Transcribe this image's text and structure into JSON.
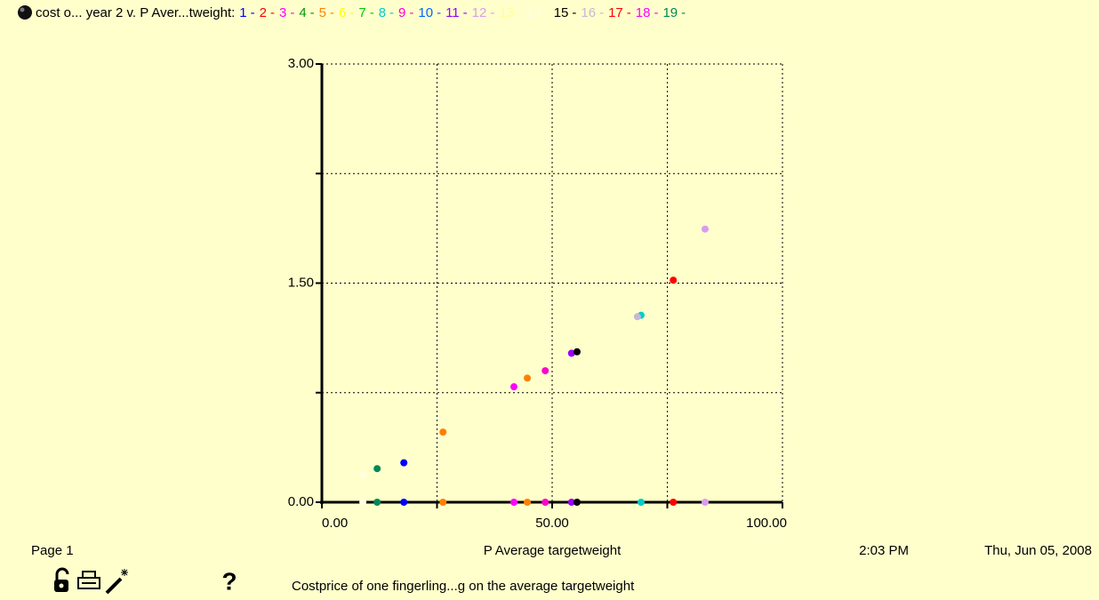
{
  "chart_data": {
    "type": "scatter",
    "title": "cost o... year 2 v. P Aver...tweight:",
    "legend_separator": "-",
    "xlabel": "P Average targetweight",
    "xlim": [
      0,
      100
    ],
    "ylim": [
      0,
      3
    ],
    "xticks": [
      {
        "value": 0,
        "label": "0.00"
      },
      {
        "value": 50,
        "label": "50.00"
      },
      {
        "value": 100,
        "label": "100.00"
      }
    ],
    "yticks": [
      {
        "value": 0,
        "label": "0.00"
      },
      {
        "value": 1.5,
        "label": "1.50"
      },
      {
        "value": 3,
        "label": "3.00"
      }
    ],
    "xgrid": [
      25,
      75
    ],
    "ygrid": [
      0.75,
      2.25
    ],
    "grid": true,
    "series": [
      {
        "name": "1",
        "color": "#0000ff",
        "x": [
          17.8,
          17.8
        ],
        "values": [
          0,
          0.27
        ]
      },
      {
        "name": "2",
        "color": "#ff0000",
        "x": [],
        "values": []
      },
      {
        "name": "3",
        "color": "#ff00ff",
        "x": [
          41.7,
          41.7
        ],
        "values": [
          0,
          0.79
        ]
      },
      {
        "name": "4",
        "color": "#009900",
        "x": [],
        "values": []
      },
      {
        "name": "5",
        "color": "#ff8000",
        "x": [
          26.3,
          26.3,
          44.6,
          44.6
        ],
        "values": [
          0,
          0.48,
          0,
          0.85
        ]
      },
      {
        "name": "6",
        "color": "#ffff00",
        "x": [],
        "values": []
      },
      {
        "name": "7",
        "color": "#00cc00",
        "x": [],
        "values": []
      },
      {
        "name": "8",
        "color": "#00cccc",
        "x": [
          69.3,
          69.3
        ],
        "values": [
          0,
          1.28
        ]
      },
      {
        "name": "9",
        "color": "#ff00cc",
        "x": [
          48.5,
          48.5
        ],
        "values": [
          0,
          0.9
        ]
      },
      {
        "name": "10",
        "color": "#0066ff",
        "x": [],
        "values": []
      },
      {
        "name": "11",
        "color": "#9900ff",
        "x": [
          54.2,
          54.2
        ],
        "values": [
          0,
          1.02
        ]
      },
      {
        "name": "12",
        "color": "#d99cf0",
        "x": [
          83.2,
          83.2
        ],
        "values": [
          0,
          1.87
        ]
      },
      {
        "name": "13",
        "color": "#ffff99",
        "x": [],
        "values": []
      },
      {
        "name": "14",
        "color": "#ffffe0",
        "x": [
          8.9,
          8.9
        ],
        "values": [
          0,
          0.19
        ]
      },
      {
        "name": "15",
        "color": "#000000",
        "x": [
          55.4,
          55.4
        ],
        "values": [
          0,
          1.03
        ]
      },
      {
        "name": "16",
        "color": "#c8b8d8",
        "x": [
          68.5
        ],
        "values": [
          1.27
        ]
      },
      {
        "name": "17",
        "color": "#ff0000",
        "x": [
          76.3,
          76.3
        ],
        "values": [
          0,
          1.52
        ]
      },
      {
        "name": "18",
        "color": "#ff00ff",
        "x": [],
        "values": []
      },
      {
        "name": "19",
        "color": "#008855",
        "x": [
          12,
          12
        ],
        "values": [
          0,
          0.23
        ]
      }
    ]
  },
  "footer": {
    "page": "Page 1",
    "time": "2:03 PM",
    "date": "Thu, Jun 05, 2008",
    "caption": "Costprice of one fingerling...g on the average targetweight",
    "help": "?"
  }
}
